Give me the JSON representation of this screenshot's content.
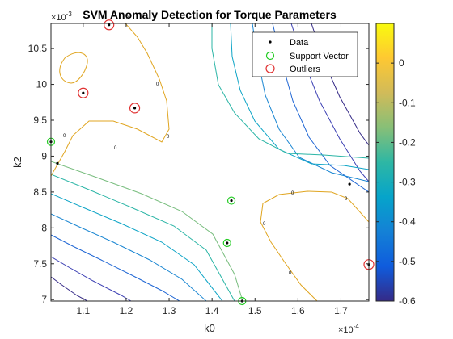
{
  "chart_data": {
    "type": "scatter",
    "title": "SVM Anomaly Detection for Torque Parameters",
    "xlabel": "k0",
    "ylabel": "k2",
    "x_exponent_label": "×10",
    "x_exponent": "-4",
    "y_exponent_label": "×10",
    "y_exponent": "-3",
    "xlim": [
      1.025,
      1.765
    ],
    "ylim": [
      6.98,
      10.85
    ],
    "x_ticks": [
      1.1,
      1.2,
      1.3,
      1.4,
      1.5,
      1.6,
      1.7
    ],
    "y_ticks": [
      7,
      7.5,
      8,
      8.5,
      9,
      9.5,
      10,
      10.5
    ],
    "grid": false,
    "legend_position": "top-right",
    "legend": [
      "Data",
      "Support Vector",
      "Outliers"
    ],
    "series": [
      {
        "name": "Data",
        "marker": "dot",
        "color": "#000000",
        "x": [
          1.16,
          1.22,
          1.1,
          1.025,
          1.04,
          1.445,
          1.435,
          1.47,
          1.72,
          1.765
        ],
        "y": [
          10.83,
          9.67,
          9.88,
          9.2,
          8.9,
          8.38,
          7.79,
          6.98,
          8.61,
          7.49
        ]
      },
      {
        "name": "Support Vector",
        "marker": "circle",
        "color": "#22cc22",
        "x": [
          1.025,
          1.445,
          1.435,
          1.47
        ],
        "y": [
          9.2,
          8.38,
          7.79,
          6.98
        ]
      },
      {
        "name": "Outliers",
        "marker": "circle",
        "color": "#e03030",
        "x": [
          1.16,
          1.22,
          1.1,
          1.765
        ],
        "y": [
          10.83,
          9.67,
          9.88,
          7.49
        ]
      }
    ],
    "colorbar": {
      "range": [
        -0.6,
        0.1
      ],
      "ticks": [
        0,
        -0.1,
        -0.2,
        -0.3,
        -0.4,
        -0.5,
        -0.6
      ],
      "tick_labels": [
        "0",
        "-0.1",
        "-0.2",
        "-0.3",
        "-0.4",
        "-0.5",
        "-0.6"
      ],
      "colormap": "parula",
      "colors": [
        "#352a87",
        "#0f5cdd",
        "#1481d6",
        "#06a4ca",
        "#2eb7a4",
        "#87bf77",
        "#d1bb59",
        "#fec832",
        "#f9fb0e"
      ]
    },
    "contour_labels": [
      "0",
      "0",
      "0",
      "0",
      "0",
      "0",
      "0",
      "0",
      "0",
      "0",
      "0",
      "0"
    ]
  }
}
